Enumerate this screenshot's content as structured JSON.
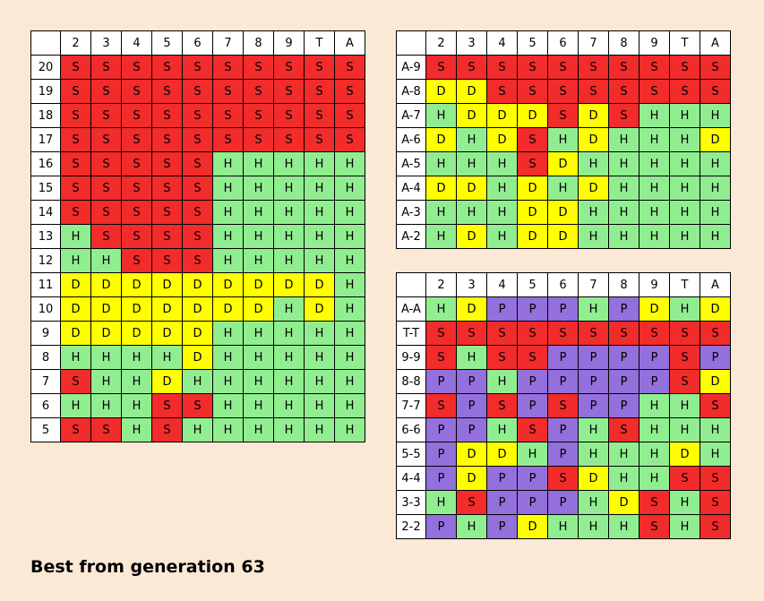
{
  "columns": [
    "2",
    "3",
    "4",
    "5",
    "6",
    "7",
    "8",
    "9",
    "T",
    "A"
  ],
  "colors": {
    "S": "#f22b2b",
    "H": "#90ee90",
    "D": "#ffff00",
    "P": "#9370db"
  },
  "hard": {
    "rows": [
      {
        "label": "20",
        "cells": [
          "S",
          "S",
          "S",
          "S",
          "S",
          "S",
          "S",
          "S",
          "S",
          "S"
        ]
      },
      {
        "label": "19",
        "cells": [
          "S",
          "S",
          "S",
          "S",
          "S",
          "S",
          "S",
          "S",
          "S",
          "S"
        ]
      },
      {
        "label": "18",
        "cells": [
          "S",
          "S",
          "S",
          "S",
          "S",
          "S",
          "S",
          "S",
          "S",
          "S"
        ]
      },
      {
        "label": "17",
        "cells": [
          "S",
          "S",
          "S",
          "S",
          "S",
          "S",
          "S",
          "S",
          "S",
          "S"
        ]
      },
      {
        "label": "16",
        "cells": [
          "S",
          "S",
          "S",
          "S",
          "S",
          "H",
          "H",
          "H",
          "H",
          "H"
        ]
      },
      {
        "label": "15",
        "cells": [
          "S",
          "S",
          "S",
          "S",
          "S",
          "H",
          "H",
          "H",
          "H",
          "H"
        ]
      },
      {
        "label": "14",
        "cells": [
          "S",
          "S",
          "S",
          "S",
          "S",
          "H",
          "H",
          "H",
          "H",
          "H"
        ]
      },
      {
        "label": "13",
        "cells": [
          "H",
          "S",
          "S",
          "S",
          "S",
          "H",
          "H",
          "H",
          "H",
          "H"
        ]
      },
      {
        "label": "12",
        "cells": [
          "H",
          "H",
          "S",
          "S",
          "S",
          "H",
          "H",
          "H",
          "H",
          "H"
        ]
      },
      {
        "label": "11",
        "cells": [
          "D",
          "D",
          "D",
          "D",
          "D",
          "D",
          "D",
          "D",
          "D",
          "H"
        ]
      },
      {
        "label": "10",
        "cells": [
          "D",
          "D",
          "D",
          "D",
          "D",
          "D",
          "D",
          "H",
          "D",
          "H"
        ]
      },
      {
        "label": "9",
        "cells": [
          "D",
          "D",
          "D",
          "D",
          "D",
          "H",
          "H",
          "H",
          "H",
          "H"
        ]
      },
      {
        "label": "8",
        "cells": [
          "H",
          "H",
          "H",
          "H",
          "D",
          "H",
          "H",
          "H",
          "H",
          "H"
        ]
      },
      {
        "label": "7",
        "cells": [
          "S",
          "H",
          "H",
          "D",
          "H",
          "H",
          "H",
          "H",
          "H",
          "H"
        ]
      },
      {
        "label": "6",
        "cells": [
          "H",
          "H",
          "H",
          "S",
          "S",
          "H",
          "H",
          "H",
          "H",
          "H"
        ]
      },
      {
        "label": "5",
        "cells": [
          "S",
          "S",
          "H",
          "S",
          "H",
          "H",
          "H",
          "H",
          "H",
          "H"
        ]
      }
    ]
  },
  "soft": {
    "rows": [
      {
        "label": "A-9",
        "cells": [
          "S",
          "S",
          "S",
          "S",
          "S",
          "S",
          "S",
          "S",
          "S",
          "S"
        ]
      },
      {
        "label": "A-8",
        "cells": [
          "D",
          "D",
          "S",
          "S",
          "S",
          "S",
          "S",
          "S",
          "S",
          "S"
        ]
      },
      {
        "label": "A-7",
        "cells": [
          "H",
          "D",
          "D",
          "D",
          "S",
          "D",
          "S",
          "H",
          "H",
          "H"
        ]
      },
      {
        "label": "A-6",
        "cells": [
          "D",
          "H",
          "D",
          "S",
          "H",
          "D",
          "H",
          "H",
          "H",
          "D"
        ]
      },
      {
        "label": "A-5",
        "cells": [
          "H",
          "H",
          "H",
          "S",
          "D",
          "H",
          "H",
          "H",
          "H",
          "H"
        ]
      },
      {
        "label": "A-4",
        "cells": [
          "D",
          "D",
          "H",
          "D",
          "H",
          "D",
          "H",
          "H",
          "H",
          "H"
        ]
      },
      {
        "label": "A-3",
        "cells": [
          "H",
          "H",
          "H",
          "D",
          "D",
          "H",
          "H",
          "H",
          "H",
          "H"
        ]
      },
      {
        "label": "A-2",
        "cells": [
          "H",
          "D",
          "H",
          "D",
          "D",
          "H",
          "H",
          "H",
          "H",
          "H"
        ]
      }
    ]
  },
  "pairs": {
    "rows": [
      {
        "label": "A-A",
        "cells": [
          "H",
          "D",
          "P",
          "P",
          "P",
          "H",
          "P",
          "D",
          "H",
          "D"
        ]
      },
      {
        "label": "T-T",
        "cells": [
          "S",
          "S",
          "S",
          "S",
          "S",
          "S",
          "S",
          "S",
          "S",
          "S"
        ]
      },
      {
        "label": "9-9",
        "cells": [
          "S",
          "H",
          "S",
          "S",
          "P",
          "P",
          "P",
          "P",
          "S",
          "P"
        ]
      },
      {
        "label": "8-8",
        "cells": [
          "P",
          "P",
          "H",
          "P",
          "P",
          "P",
          "P",
          "P",
          "S",
          "D"
        ]
      },
      {
        "label": "7-7",
        "cells": [
          "S",
          "P",
          "S",
          "P",
          "S",
          "P",
          "P",
          "H",
          "H",
          "S"
        ]
      },
      {
        "label": "6-6",
        "cells": [
          "P",
          "P",
          "H",
          "S",
          "P",
          "H",
          "S",
          "H",
          "H",
          "H"
        ]
      },
      {
        "label": "5-5",
        "cells": [
          "P",
          "D",
          "D",
          "H",
          "P",
          "H",
          "H",
          "H",
          "D",
          "H"
        ]
      },
      {
        "label": "4-4",
        "cells": [
          "P",
          "D",
          "P",
          "P",
          "S",
          "D",
          "H",
          "H",
          "S",
          "S"
        ]
      },
      {
        "label": "3-3",
        "cells": [
          "H",
          "S",
          "P",
          "P",
          "P",
          "H",
          "D",
          "S",
          "H",
          "S"
        ]
      },
      {
        "label": "2-2",
        "cells": [
          "P",
          "H",
          "P",
          "D",
          "H",
          "H",
          "H",
          "S",
          "H",
          "S"
        ]
      }
    ]
  },
  "caption": "Best from generation 63"
}
